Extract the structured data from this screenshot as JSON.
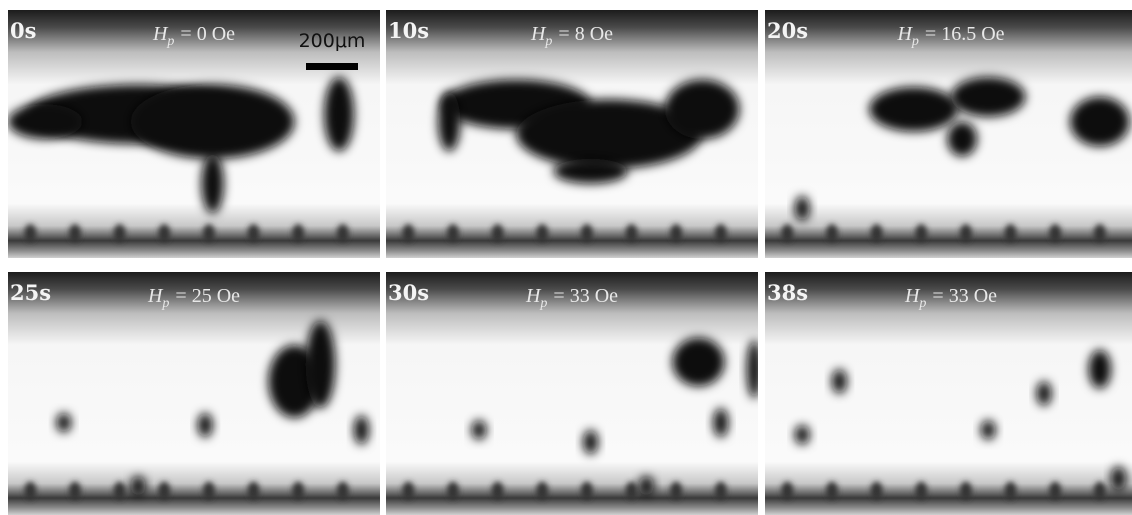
{
  "symbol": {
    "main": "H",
    "sub": "p"
  },
  "scale_bar": "200μm",
  "panels": [
    {
      "time": "0s",
      "field": "= 0 Oe"
    },
    {
      "time": "10s",
      "field": "= 8 Oe"
    },
    {
      "time": "20s",
      "field": "= 16.5 Oe"
    },
    {
      "time": "25s",
      "field": "= 25 Oe"
    },
    {
      "time": "30s",
      "field": "= 33 Oe"
    },
    {
      "time": "38s",
      "field": "= 33 Oe"
    }
  ]
}
